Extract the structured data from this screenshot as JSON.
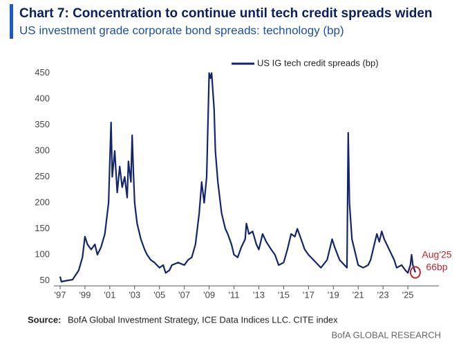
{
  "chart_data": {
    "type": "line",
    "title": "Chart 7: Concentration to continue until tech credit spreads widen",
    "subtitle": "US investment grade corporate bond spreads: technology (bp)",
    "series": [
      {
        "name": "US IG tech credit spreads (bp)",
        "color": "#13246b",
        "x": [
          1997.0,
          1997.1,
          1997.5,
          1998.0,
          1998.5,
          1998.8,
          1999.0,
          1999.2,
          1999.5,
          1999.8,
          2000.0,
          2000.3,
          2000.6,
          2000.9,
          2001.0,
          2001.1,
          2001.2,
          2001.4,
          2001.6,
          2001.8,
          2002.0,
          2002.2,
          2002.4,
          2002.5,
          2002.7,
          2002.8,
          2002.9,
          2003.0,
          2003.2,
          2003.5,
          2003.8,
          2004.0,
          2004.3,
          2004.6,
          2005.0,
          2005.3,
          2005.5,
          2005.8,
          2006.0,
          2006.5,
          2007.0,
          2007.3,
          2007.6,
          2007.9,
          2008.2,
          2008.4,
          2008.6,
          2008.8,
          2009.0,
          2009.1,
          2009.2,
          2009.4,
          2009.5,
          2009.7,
          2010.0,
          2010.3,
          2010.5,
          2010.8,
          2011.0,
          2011.3,
          2011.6,
          2011.9,
          2012.0,
          2012.2,
          2012.5,
          2012.8,
          2013.0,
          2013.3,
          2013.6,
          2014.0,
          2014.3,
          2014.6,
          2015.0,
          2015.3,
          2015.6,
          2015.9,
          2016.1,
          2016.4,
          2016.7,
          2017.0,
          2017.4,
          2017.8,
          2018.0,
          2018.5,
          2018.9,
          2019.1,
          2019.5,
          2019.9,
          2020.1,
          2020.2,
          2020.3,
          2020.5,
          2020.8,
          2021.0,
          2021.4,
          2021.8,
          2022.0,
          2022.3,
          2022.5,
          2022.7,
          2022.9,
          2023.1,
          2023.3,
          2023.6,
          2023.9,
          2024.1,
          2024.5,
          2024.8,
          2025.0,
          2025.2,
          2025.3,
          2025.4,
          2025.6
        ],
        "values": [
          58,
          48,
          50,
          52,
          70,
          95,
          135,
          120,
          110,
          120,
          100,
          115,
          140,
          200,
          280,
          355,
          250,
          300,
          220,
          270,
          230,
          250,
          210,
          280,
          240,
          330,
          260,
          200,
          160,
          130,
          110,
          100,
          90,
          85,
          75,
          80,
          65,
          70,
          80,
          85,
          80,
          90,
          95,
          120,
          180,
          240,
          200,
          250,
          450,
          440,
          450,
          380,
          300,
          240,
          180,
          150,
          140,
          120,
          100,
          95,
          115,
          130,
          160,
          140,
          145,
          120,
          110,
          140,
          125,
          110,
          100,
          80,
          85,
          110,
          140,
          135,
          150,
          130,
          110,
          100,
          90,
          80,
          75,
          90,
          130,
          115,
          90,
          80,
          75,
          335,
          200,
          130,
          100,
          80,
          75,
          80,
          90,
          120,
          140,
          125,
          145,
          130,
          120,
          105,
          90,
          75,
          80,
          70,
          65,
          80,
          100,
          80,
          66
        ]
      }
    ],
    "xlim": [
      1996.5,
      2027.5
    ],
    "xticks": [
      {
        "value": 1997,
        "label": "'97"
      },
      {
        "value": 1999,
        "label": "'99"
      },
      {
        "value": 2001,
        "label": "'01"
      },
      {
        "value": 2003,
        "label": "'03"
      },
      {
        "value": 2005,
        "label": "'05"
      },
      {
        "value": 2007,
        "label": "'07"
      },
      {
        "value": 2009,
        "label": "'09"
      },
      {
        "value": 2011,
        "label": "'11"
      },
      {
        "value": 2013,
        "label": "'13"
      },
      {
        "value": 2015,
        "label": "'15"
      },
      {
        "value": 2017,
        "label": "'17"
      },
      {
        "value": 2019,
        "label": "'19"
      },
      {
        "value": 2021,
        "label": "'21"
      },
      {
        "value": 2023,
        "label": "'23"
      },
      {
        "value": 2025,
        "label": "'25"
      }
    ],
    "ylim": [
      40,
      455
    ],
    "yticks": [
      50,
      100,
      150,
      200,
      250,
      300,
      350,
      400,
      450
    ],
    "annotation": {
      "date": "Aug'25",
      "value": "66bp",
      "color": "#c0272d"
    },
    "source_label": "Source:",
    "source": "BofA Global Investment Strategy, ICE Data Indices LLC. CITE index",
    "footer": "BofA GLOBAL RESEARCH"
  }
}
